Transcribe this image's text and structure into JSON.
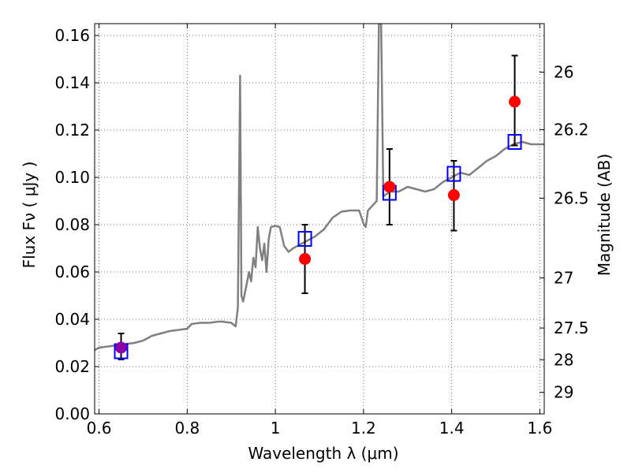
{
  "chart_data": {
    "type": "scatter",
    "title": "",
    "xlabel": "Wavelength  λ (μm)",
    "ylabel": "Flux  Fν  ( μJy )",
    "ylabel_right": "Magnitude (AB)",
    "xlim": [
      0.59,
      1.61
    ],
    "ylim": [
      0.0,
      0.165
    ],
    "grid": true,
    "xticks": [
      0.6,
      0.8,
      1.0,
      1.2,
      1.4,
      1.6
    ],
    "xtick_labels": [
      "0.6",
      "0.8",
      "1",
      "1.2",
      "1.4",
      "1.6"
    ],
    "yticks": [
      0.0,
      0.02,
      0.04,
      0.06,
      0.08,
      0.1,
      0.12,
      0.14,
      0.16
    ],
    "ytick_labels": [
      "0.00",
      "0.02",
      "0.04",
      "0.06",
      "0.08",
      "0.10",
      "0.12",
      "0.14",
      "0.16"
    ],
    "right_ticks": [
      {
        "label": "26",
        "flux": 0.1445
      },
      {
        "label": "26.2",
        "flux": 0.1202
      },
      {
        "label": "26.5",
        "flux": 0.0912
      },
      {
        "label": "27",
        "flux": 0.0575
      },
      {
        "label": "27.5",
        "flux": 0.0363
      },
      {
        "label": "28",
        "flux": 0.0229
      },
      {
        "label": "29",
        "flux": 0.0091
      }
    ],
    "series": [
      {
        "kind": "line",
        "color": "#808080",
        "points": [
          [
            0.59,
            0.027
          ],
          [
            0.6,
            0.028
          ],
          [
            0.62,
            0.0285
          ],
          [
            0.64,
            0.029
          ],
          [
            0.66,
            0.0295
          ],
          [
            0.68,
            0.03
          ],
          [
            0.7,
            0.031
          ],
          [
            0.72,
            0.033
          ],
          [
            0.74,
            0.034
          ],
          [
            0.76,
            0.035
          ],
          [
            0.78,
            0.0355
          ],
          [
            0.8,
            0.036
          ],
          [
            0.81,
            0.038
          ],
          [
            0.83,
            0.0385
          ],
          [
            0.85,
            0.0385
          ],
          [
            0.87,
            0.039
          ],
          [
            0.88,
            0.039
          ],
          [
            0.9,
            0.0385
          ],
          [
            0.91,
            0.037
          ],
          [
            0.915,
            0.045
          ],
          [
            0.92,
            0.143
          ],
          [
            0.923,
            0.05
          ],
          [
            0.927,
            0.0475
          ],
          [
            0.935,
            0.055
          ],
          [
            0.94,
            0.06
          ],
          [
            0.945,
            0.056
          ],
          [
            0.95,
            0.066
          ],
          [
            0.955,
            0.062
          ],
          [
            0.96,
            0.079
          ],
          [
            0.965,
            0.07
          ],
          [
            0.97,
            0.065
          ],
          [
            0.975,
            0.072
          ],
          [
            0.98,
            0.06
          ],
          [
            0.985,
            0.074
          ],
          [
            0.99,
            0.079
          ],
          [
            1.0,
            0.0795
          ],
          [
            1.01,
            0.079
          ],
          [
            1.02,
            0.071
          ],
          [
            1.03,
            0.0685
          ],
          [
            1.04,
            0.07
          ],
          [
            1.05,
            0.071
          ],
          [
            1.07,
            0.073
          ],
          [
            1.09,
            0.075
          ],
          [
            1.11,
            0.078
          ],
          [
            1.13,
            0.083
          ],
          [
            1.15,
            0.0855
          ],
          [
            1.17,
            0.086
          ],
          [
            1.19,
            0.086
          ],
          [
            1.2,
            0.0805
          ],
          [
            1.205,
            0.079
          ],
          [
            1.21,
            0.086
          ],
          [
            1.22,
            0.088
          ],
          [
            1.23,
            0.09
          ],
          [
            1.235,
            0.165
          ],
          [
            1.24,
            0.165
          ],
          [
            1.245,
            0.092
          ],
          [
            1.26,
            0.094
          ],
          [
            1.28,
            0.094
          ],
          [
            1.3,
            0.096
          ],
          [
            1.32,
            0.095
          ],
          [
            1.34,
            0.094
          ],
          [
            1.36,
            0.095
          ],
          [
            1.38,
            0.098
          ],
          [
            1.4,
            0.1
          ],
          [
            1.42,
            0.102
          ],
          [
            1.44,
            0.101
          ],
          [
            1.46,
            0.104
          ],
          [
            1.48,
            0.107
          ],
          [
            1.5,
            0.109
          ],
          [
            1.52,
            0.112
          ],
          [
            1.54,
            0.114
          ],
          [
            1.56,
            0.115
          ],
          [
            1.58,
            0.114
          ],
          [
            1.6,
            0.114
          ],
          [
            1.61,
            0.114
          ]
        ]
      },
      {
        "kind": "observed",
        "color": "#ff0000",
        "points": [
          {
            "x": 0.65,
            "y": 0.028,
            "err_low": 0.023,
            "err_high": 0.034
          },
          {
            "x": 1.067,
            "y": 0.0655,
            "err_low": 0.051,
            "err_high": 0.08
          },
          {
            "x": 1.259,
            "y": 0.096,
            "err_low": 0.08,
            "err_high": 0.112
          },
          {
            "x": 1.405,
            "y": 0.0925,
            "err_low": 0.0775,
            "err_high": 0.107
          },
          {
            "x": 1.543,
            "y": 0.132,
            "err_low": 0.1135,
            "err_high": 0.1515
          }
        ]
      },
      {
        "kind": "model",
        "color": "#0000ff",
        "points": [
          {
            "x": 0.65,
            "y": 0.0265
          },
          {
            "x": 1.067,
            "y": 0.074
          },
          {
            "x": 1.259,
            "y": 0.0935
          },
          {
            "x": 1.405,
            "y": 0.1015
          },
          {
            "x": 1.543,
            "y": 0.115
          }
        ]
      }
    ]
  }
}
